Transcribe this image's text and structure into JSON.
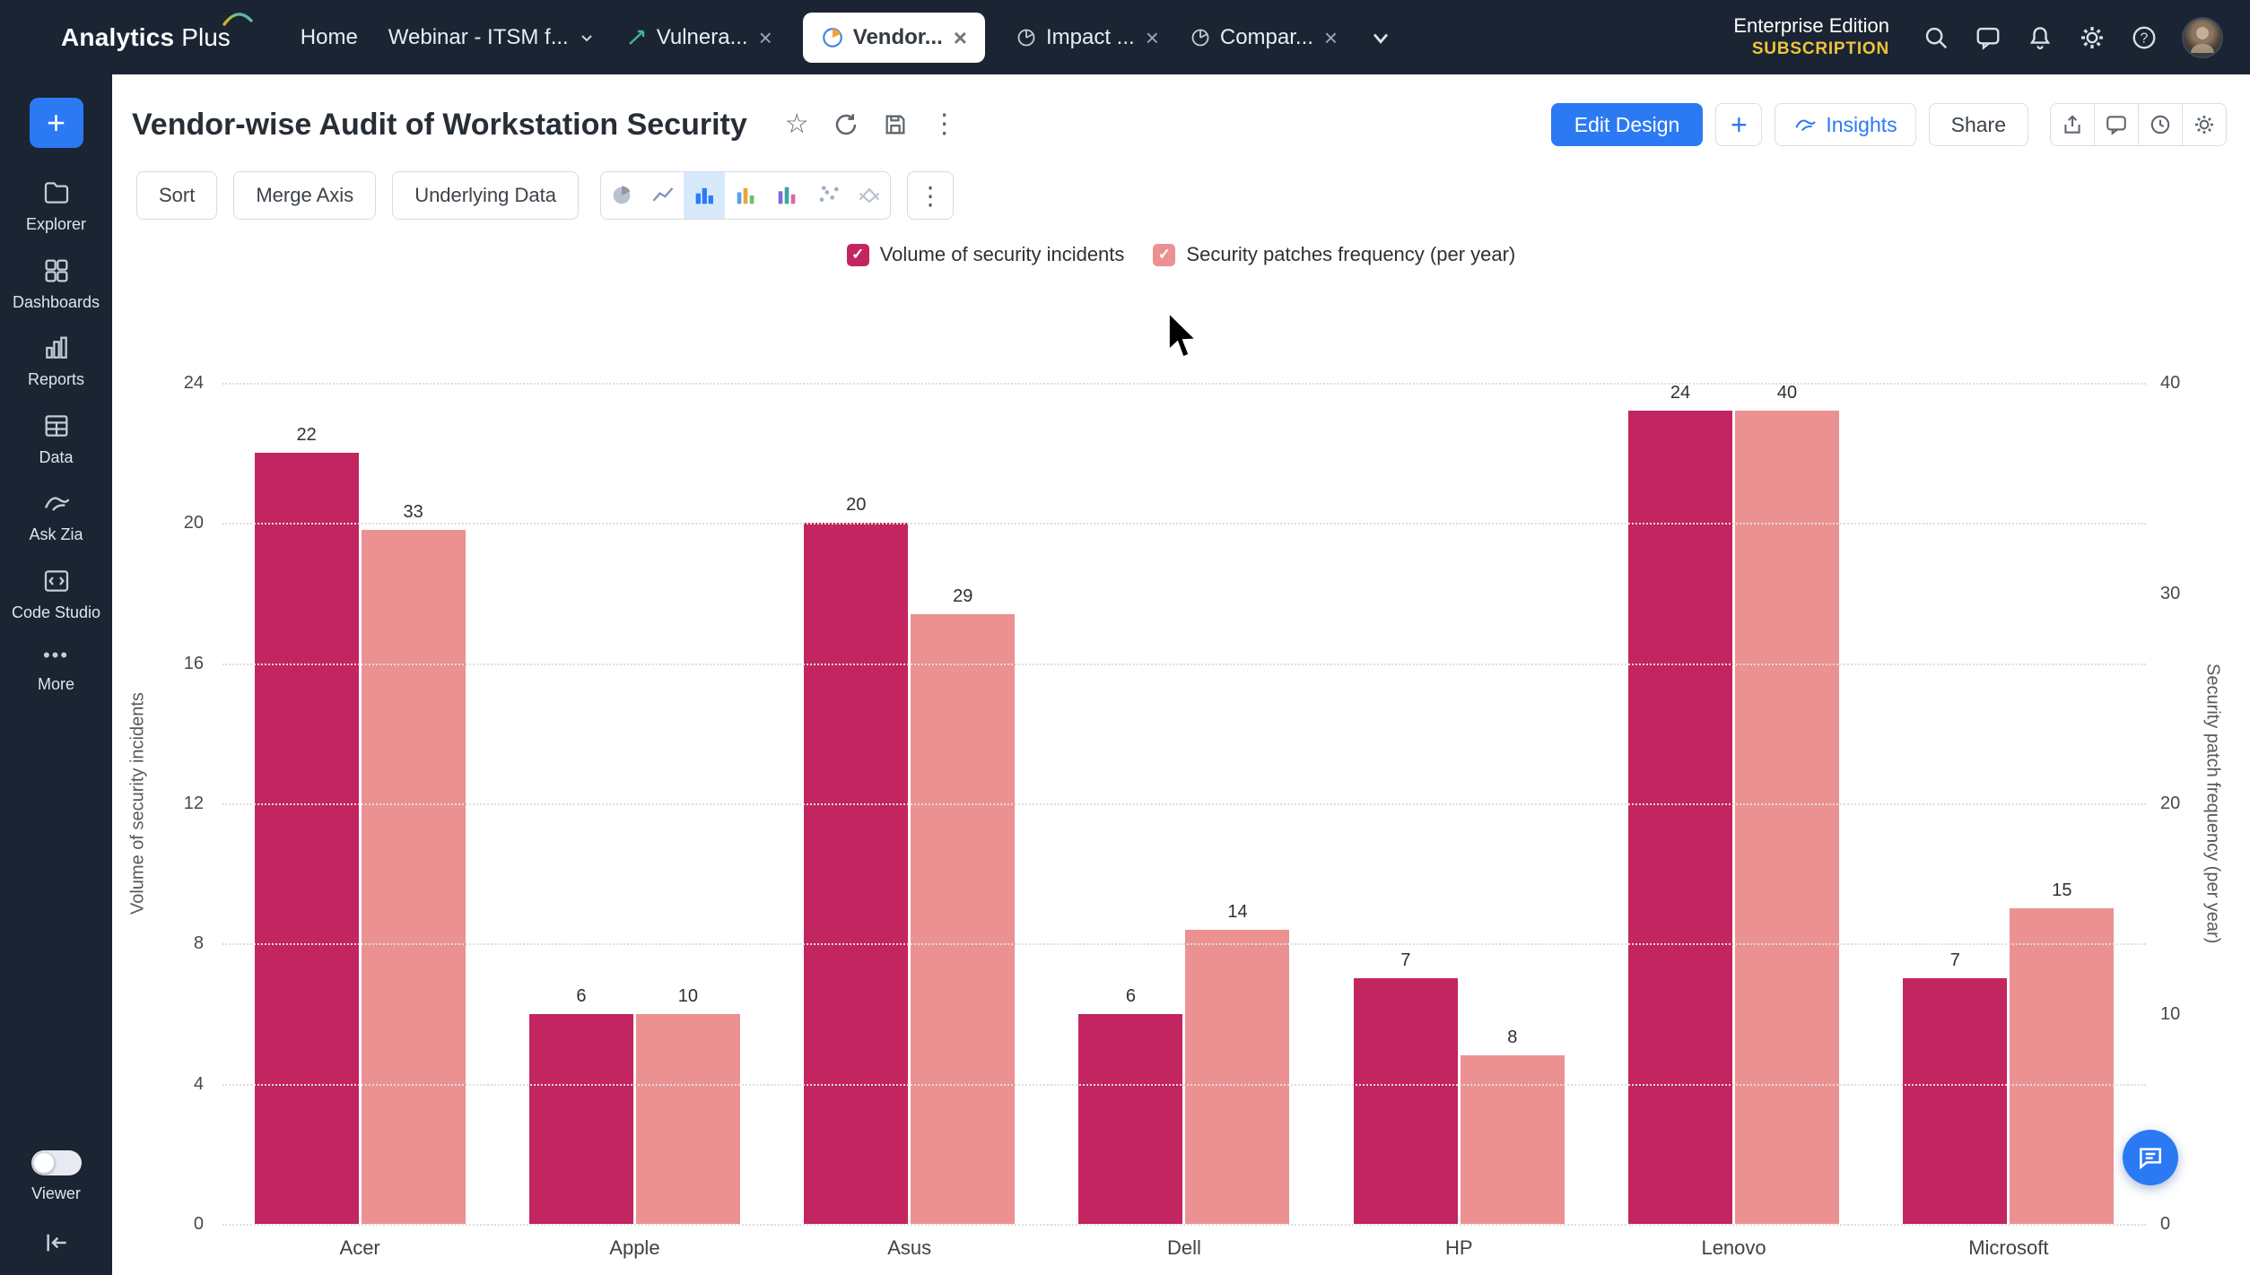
{
  "topbar": {
    "logo": {
      "analytics": "Analytics",
      "plus": "Plus"
    },
    "tabs": [
      {
        "label": "Home"
      },
      {
        "label": "Webinar - ITSM f..."
      },
      {
        "label": "Vulnera..."
      },
      {
        "label": "Vendor..."
      },
      {
        "label": "Impact ..."
      },
      {
        "label": "Compar..."
      }
    ],
    "edition": "Enterprise Edition",
    "subscription": "SUBSCRIPTION"
  },
  "sidebar": {
    "items": [
      {
        "label": "Explorer"
      },
      {
        "label": "Dashboards"
      },
      {
        "label": "Reports"
      },
      {
        "label": "Data"
      },
      {
        "label": "Ask Zia"
      },
      {
        "label": "Code Studio"
      },
      {
        "label": "More"
      }
    ],
    "viewer_label": "Viewer"
  },
  "header": {
    "title": "Vendor-wise Audit of Workstation Security",
    "edit_design": "Edit Design",
    "insights": "Insights",
    "share": "Share"
  },
  "toolbar": {
    "sort": "Sort",
    "merge_axis": "Merge Axis",
    "underlying_data": "Underlying Data"
  },
  "legend": [
    {
      "label": "Volume of security incidents",
      "color": "#c2255f"
    },
    {
      "label": "Security patches frequency (per year)",
      "color": "#ec9191"
    }
  ],
  "chart_data": {
    "type": "bar",
    "title": "Vendor-wise Audit of Workstation Security",
    "categories": [
      "Acer",
      "Apple",
      "Asus",
      "Dell",
      "HP",
      "Lenovo",
      "Microsoft"
    ],
    "series": [
      {
        "name": "Volume of security incidents",
        "axis": "left",
        "color": "#c2255f",
        "values": [
          22,
          6,
          20,
          6,
          7,
          24,
          7
        ]
      },
      {
        "name": "Security patches frequency (per year)",
        "axis": "right",
        "color": "#ec9191",
        "values": [
          33,
          10,
          29,
          14,
          8,
          40,
          15
        ]
      }
    ],
    "left_axis": {
      "label": "Volume of security incidents",
      "ticks": [
        0,
        4,
        8,
        12,
        16,
        20,
        24
      ],
      "max": 24
    },
    "right_axis": {
      "label": "Security patch frequency (per year)",
      "ticks": [
        0,
        10,
        20,
        30,
        40
      ],
      "max": 40
    },
    "grid": "dotted-horizontal",
    "legend_position": "top"
  },
  "icons": {
    "close": "×",
    "star": "☆",
    "kebab": "⋮",
    "plus": "+",
    "more": "•••",
    "check": "✓"
  }
}
